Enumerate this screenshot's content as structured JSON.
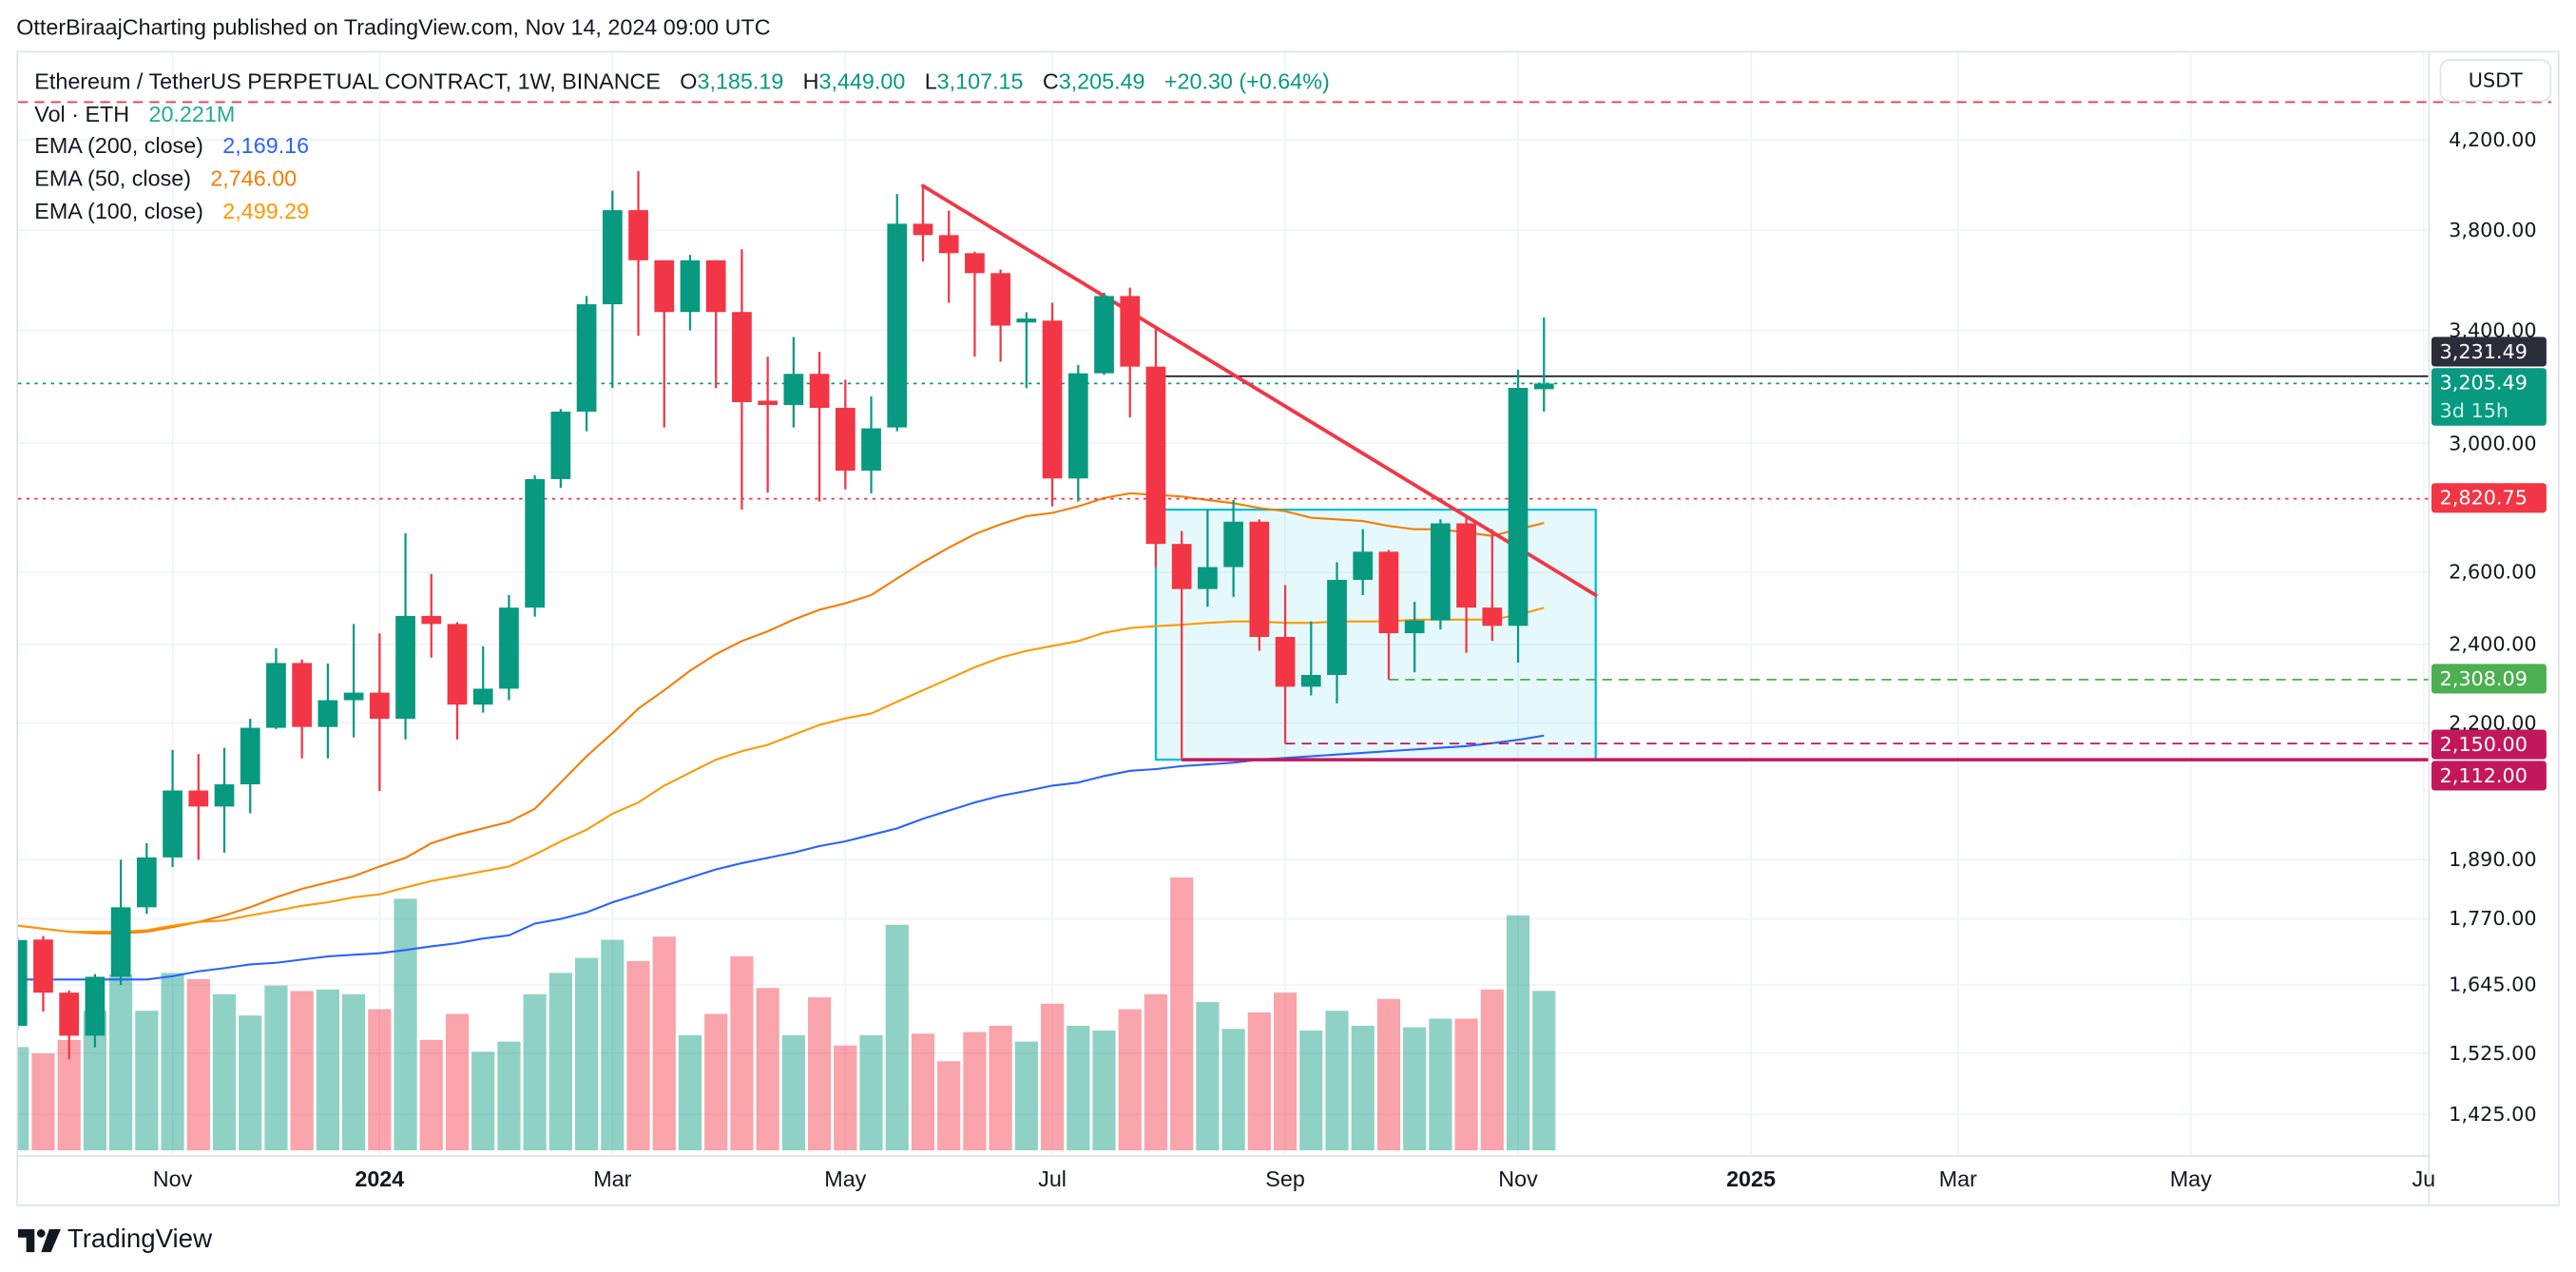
{
  "header": {
    "published": "OtterBiraajCharting published on TradingView.com, Nov 14, 2024 09:00 UTC"
  },
  "legend": {
    "symbol": "Ethereum / TetherUS PERPETUAL CONTRACT, 1W, BINANCE",
    "o_label": "O",
    "o": "3,185.19",
    "h_label": "H",
    "h": "3,449.00",
    "l_label": "L",
    "l": "3,107.15",
    "c_label": "C",
    "c": "3,205.49",
    "change": "+20.30 (+0.64%)",
    "vol_label": "Vol · ETH",
    "vol": "20.221M",
    "vol_color": "#22ab94",
    "emas": [
      {
        "label": "EMA (200, close)",
        "value": "2,169.16",
        "color": "#2962ff"
      },
      {
        "label": "EMA (50, close)",
        "value": "2,746.00",
        "color": "#f57c00"
      },
      {
        "label": "EMA (100, close)",
        "value": "2,499.29",
        "color": "#ff9800"
      }
    ]
  },
  "price_axis": {
    "currency": "USDT",
    "scale": "log",
    "ticks": [
      {
        "value": 4200,
        "label": "4,200.00"
      },
      {
        "value": 3800,
        "label": "3,800.00"
      },
      {
        "value": 3400,
        "label": "3,400.00"
      },
      {
        "value": 3000,
        "label": "3,000.00"
      },
      {
        "value": 2600,
        "label": "2,600.00"
      },
      {
        "value": 2400,
        "label": "2,400.00"
      },
      {
        "value": 2200,
        "label": "2,200.00"
      },
      {
        "value": 1890,
        "label": "1,890.00"
      },
      {
        "value": 1770,
        "label": "1,770.00"
      },
      {
        "value": 1645,
        "label": "1,645.00"
      },
      {
        "value": 1525,
        "label": "1,525.00"
      },
      {
        "value": 1425,
        "label": "1,425.00"
      }
    ],
    "labels": [
      {
        "value": "3,231.49",
        "color": "#2a2e39"
      },
      {
        "value": "3,205.49",
        "countdown": "3d 15h",
        "color": "#089981"
      },
      {
        "value": "2,820.75",
        "color": "#f23645"
      },
      {
        "value": "2,308.09",
        "color": "#4caf50"
      },
      {
        "value": "2,150.00",
        "color": "#c2185b"
      },
      {
        "value": "2,112.00",
        "color": "#c2185b"
      }
    ]
  },
  "time_axis": {
    "ticks": [
      {
        "date": "2023-11-06",
        "label": "Nov",
        "bold": false
      },
      {
        "date": "2024-01-01",
        "label": "2024",
        "bold": true
      },
      {
        "date": "2024-03-04",
        "label": "Mar",
        "bold": false
      },
      {
        "date": "2024-05-06",
        "label": "May",
        "bold": false
      },
      {
        "date": "2024-07-01",
        "label": "Jul",
        "bold": false
      },
      {
        "date": "2024-09-02",
        "label": "Sep",
        "bold": false
      },
      {
        "date": "2024-11-04",
        "label": "Nov",
        "bold": false
      },
      {
        "date": "2025-01-06",
        "label": "2025",
        "bold": true
      },
      {
        "date": "2025-03-03",
        "label": "Mar",
        "bold": false
      },
      {
        "date": "2025-05-05",
        "label": "May",
        "bold": false
      },
      {
        "date": "2025-07-07",
        "label": "Ju",
        "bold": false
      }
    ]
  },
  "chart_data": {
    "type": "candlestick",
    "interval": "1W",
    "yscale": "log",
    "ylim": [
      1400,
      4450
    ],
    "colors": {
      "up": "#089981",
      "down": "#f23645"
    },
    "columns": [
      "date",
      "open",
      "high",
      "low",
      "close",
      "volume_m"
    ],
    "candles": [
      [
        "2023-09-25",
        1572,
        1735,
        1565,
        1729,
        13.1
      ],
      [
        "2023-10-02",
        1730,
        1737,
        1597,
        1631,
        12.3
      ],
      [
        "2023-10-09",
        1631,
        1635,
        1515,
        1555,
        14.0
      ],
      [
        "2023-10-16",
        1555,
        1665,
        1535,
        1660,
        17.7
      ],
      [
        "2023-10-23",
        1660,
        1890,
        1645,
        1793,
        22.3
      ],
      [
        "2023-10-30",
        1793,
        1925,
        1780,
        1895,
        17.7
      ],
      [
        "2023-11-06",
        1895,
        2135,
        1875,
        2041,
        22.5
      ],
      [
        "2023-11-13",
        2041,
        2125,
        1890,
        2005,
        21.7
      ],
      [
        "2023-11-20",
        2005,
        2140,
        1905,
        2055,
        19.8
      ],
      [
        "2023-11-27",
        2055,
        2210,
        1990,
        2188,
        17.1
      ],
      [
        "2023-12-04",
        2188,
        2390,
        2185,
        2351,
        20.9
      ],
      [
        "2023-12-11",
        2351,
        2360,
        2115,
        2190,
        20.2
      ],
      [
        "2023-12-18",
        2190,
        2350,
        2115,
        2256,
        20.4
      ],
      [
        "2023-12-25",
        2256,
        2455,
        2165,
        2275,
        19.8
      ],
      [
        "2024-01-01",
        2275,
        2430,
        2040,
        2210,
        17.9
      ],
      [
        "2024-01-08",
        2210,
        2715,
        2160,
        2477,
        31.9
      ],
      [
        "2024-01-15",
        2477,
        2595,
        2365,
        2455,
        14.0
      ],
      [
        "2024-01-22",
        2455,
        2460,
        2160,
        2245,
        17.3
      ],
      [
        "2024-01-29",
        2245,
        2395,
        2225,
        2285,
        12.5
      ],
      [
        "2024-02-05",
        2285,
        2535,
        2256,
        2500,
        13.8
      ],
      [
        "2024-02-12",
        2500,
        2895,
        2475,
        2883,
        19.8
      ],
      [
        "2024-02-19",
        2883,
        3116,
        2855,
        3107,
        22.5
      ],
      [
        "2024-02-26",
        3107,
        3532,
        3040,
        3500,
        24.4
      ],
      [
        "2024-03-04",
        3500,
        3970,
        3189,
        3885,
        26.7
      ],
      [
        "2024-03-11",
        3885,
        4057,
        3380,
        3675,
        24.0
      ],
      [
        "2024-03-18",
        3675,
        3675,
        3053,
        3470,
        27.1
      ],
      [
        "2024-03-25",
        3470,
        3697,
        3400,
        3675,
        14.6
      ],
      [
        "2024-04-01",
        3675,
        3675,
        3189,
        3470,
        17.3
      ],
      [
        "2024-04-08",
        3470,
        3720,
        2787,
        3140,
        24.6
      ],
      [
        "2024-04-15",
        3145,
        3302,
        2840,
        3130,
        20.6
      ],
      [
        "2024-04-22",
        3130,
        3375,
        3053,
        3240,
        14.6
      ],
      [
        "2024-04-29",
        3240,
        3320,
        2812,
        3120,
        19.4
      ],
      [
        "2024-05-06",
        3120,
        3219,
        2850,
        2910,
        13.3
      ],
      [
        "2024-05-13",
        2910,
        3160,
        2838,
        3050,
        14.6
      ],
      [
        "2024-05-20",
        3053,
        3955,
        3040,
        3827,
        28.6
      ],
      [
        "2024-05-27",
        3827,
        3991,
        3670,
        3779,
        14.8
      ],
      [
        "2024-06-03",
        3779,
        3883,
        3506,
        3704,
        11.3
      ],
      [
        "2024-06-10",
        3704,
        3710,
        3302,
        3623,
        15.0
      ],
      [
        "2024-06-17",
        3623,
        3637,
        3284,
        3418,
        15.8
      ],
      [
        "2024-06-24",
        3430,
        3469,
        3189,
        3445,
        13.8
      ],
      [
        "2024-07-01",
        3437,
        3506,
        2797,
        2885,
        18.6
      ],
      [
        "2024-07-08",
        2885,
        3272,
        2812,
        3242,
        15.8
      ],
      [
        "2024-07-15",
        3242,
        3545,
        3236,
        3532,
        15.2
      ],
      [
        "2024-07-22",
        3532,
        3565,
        3087,
        3266,
        17.9
      ],
      [
        "2024-07-29",
        3266,
        3406,
        2615,
        2683,
        19.8
      ],
      [
        "2024-08-05",
        2683,
        2722,
        2112,
        2552,
        34.6
      ],
      [
        "2024-08-12",
        2552,
        2787,
        2502,
        2615,
        18.8
      ],
      [
        "2024-08-19",
        2615,
        2817,
        2530,
        2750,
        15.4
      ],
      [
        "2024-08-26",
        2750,
        2757,
        2383,
        2420,
        17.5
      ],
      [
        "2024-09-02",
        2420,
        2563,
        2150,
        2290,
        20.0
      ],
      [
        "2024-09-09",
        2290,
        2462,
        2268,
        2320,
        15.2
      ],
      [
        "2024-09-16",
        2320,
        2629,
        2248,
        2578,
        17.7
      ],
      [
        "2024-09-23",
        2578,
        2727,
        2535,
        2660,
        15.8
      ],
      [
        "2024-09-30",
        2660,
        2665,
        2308,
        2430,
        19.2
      ],
      [
        "2024-10-07",
        2430,
        2516,
        2327,
        2465,
        15.6
      ],
      [
        "2024-10-14",
        2465,
        2757,
        2440,
        2745,
        16.7
      ],
      [
        "2024-10-21",
        2745,
        2767,
        2378,
        2500,
        16.7
      ],
      [
        "2024-10-28",
        2500,
        2727,
        2409,
        2450,
        20.4
      ],
      [
        "2024-11-04",
        2450,
        3255,
        2352,
        3190,
        29.8
      ],
      [
        "2024-11-11",
        3185.19,
        3449,
        3107.15,
        3205.49,
        20.221
      ]
    ],
    "indicators": [
      {
        "name": "EMA (200, close)",
        "color": "#2962ff",
        "values": [
          1655,
          1655,
          1655,
          1655,
          1655,
          1655,
          1661,
          1670,
          1676,
          1683,
          1686,
          1692,
          1698,
          1701,
          1704,
          1710,
          1717,
          1723,
          1732,
          1738,
          1761,
          1770,
          1783,
          1803,
          1819,
          1836,
          1853,
          1870,
          1883,
          1894,
          1905,
          1919,
          1929,
          1943,
          1957,
          1978,
          1996,
          2014,
          2029,
          2040,
          2052,
          2059,
          2074,
          2086,
          2090,
          2097,
          2101,
          2105,
          2112,
          2116,
          2120,
          2124,
          2128,
          2132,
          2136,
          2140,
          2144,
          2151,
          2159,
          2169.16
        ]
      },
      {
        "name": "EMA (50, close)",
        "color": "#f57c00",
        "values": [
          1757,
          1751,
          1745,
          1742,
          1742,
          1745,
          1754,
          1764,
          1777,
          1793,
          1813,
          1830,
          1843,
          1856,
          1876,
          1894,
          1925,
          1943,
          1957,
          1971,
          2000,
          2059,
          2120,
          2175,
          2235,
          2281,
          2331,
          2374,
          2409,
          2435,
          2467,
          2494,
          2512,
          2535,
          2582,
          2629,
          2672,
          2712,
          2742,
          2767,
          2777,
          2797,
          2823,
          2838,
          2833,
          2828,
          2817,
          2807,
          2792,
          2782,
          2762,
          2757,
          2752,
          2737,
          2727,
          2727,
          2717,
          2707,
          2727,
          2746.0
        ]
      },
      {
        "name": "EMA (100, close)",
        "color": "#ff9800",
        "values": [
          1757,
          1751,
          1745,
          1745,
          1745,
          1748,
          1757,
          1764,
          1767,
          1777,
          1786,
          1796,
          1803,
          1813,
          1819,
          1833,
          1846,
          1856,
          1866,
          1876,
          1901,
          1929,
          1954,
          1989,
          2014,
          2052,
          2082,
          2112,
          2132,
          2147,
          2171,
          2195,
          2211,
          2223,
          2252,
          2281,
          2310,
          2340,
          2365,
          2383,
          2396,
          2409,
          2431,
          2444,
          2449,
          2453,
          2458,
          2462,
          2462,
          2458,
          2458,
          2462,
          2462,
          2462,
          2467,
          2467,
          2467,
          2467,
          2480,
          2499.29
        ]
      }
    ],
    "drawings": {
      "levels": [
        {
          "price": 4380,
          "from": "start",
          "style": "dashed",
          "color": "#f23645"
        },
        {
          "price": 3231.49,
          "from": "2024-07-29",
          "style": "solid",
          "color": "#131722"
        },
        {
          "price": 3205.49,
          "from": "start",
          "style": "dotted",
          "color": "#089981"
        },
        {
          "price": 2820.75,
          "from": "start",
          "style": "dotted",
          "color": "#f23645"
        },
        {
          "price": 2308.09,
          "from": "2024-09-30",
          "style": "dashed",
          "color": "#4caf50"
        },
        {
          "price": 2150.0,
          "from": "2024-09-02",
          "style": "dashed",
          "color": "#c2185b"
        },
        {
          "price": 2112.0,
          "from": "2024-08-05",
          "style": "solid",
          "color": "#c2185b"
        }
      ],
      "trendline": {
        "from": {
          "date": "2024-05-27",
          "price": 3991
        },
        "to": {
          "date": "2024-11-25",
          "price": 2535
        },
        "color": "#f23645"
      },
      "rectangle": {
        "from_date": "2024-07-29",
        "to_date": "2024-11-25",
        "top": 2787,
        "bottom": 2112,
        "color": "#00bcd4"
      }
    }
  },
  "footer": {
    "brand": "TradingView"
  }
}
